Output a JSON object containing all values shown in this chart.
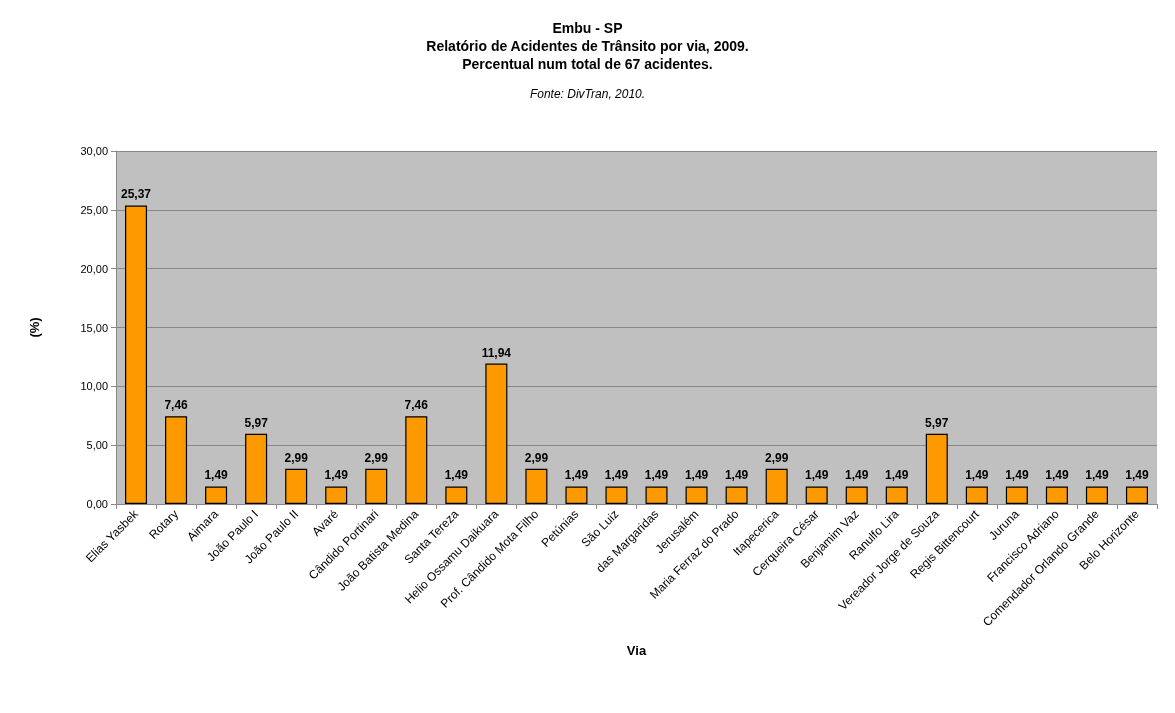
{
  "chart_data": {
    "type": "bar",
    "title": "Embu - SP",
    "subtitle": "Relatório de Acidentes de Trânsito por via, 2009.\nPercentual num total de 67 acidentes.",
    "annotations": [
      "Fonte: DivTran, 2010."
    ],
    "xlabel": "Via",
    "ylabel": "(%)",
    "categories": [
      "Elias Yasbek",
      "Rotary",
      "Aimara",
      "João Paulo I",
      "João Paulo II",
      "Avaré",
      "Cândido Portinari",
      "João Batista Medina",
      "Santa Tereza",
      "Helio Ossamu Daikuara",
      "Prof. Cândido Mota Filho",
      "Petúnias",
      "São Luiz",
      "das Margaridas",
      "Jerusalém",
      "Maria Ferraz do Prado",
      "Itapecerica",
      "Cerqueira César",
      "Benjamim Vaz",
      "Ranulfo Lira",
      "Vereador Jorge de Souza",
      "Regis Bittencourt",
      "Juruna",
      "Francisco Adriano",
      "Comendador Orlando Grande",
      "Belo Horizonte"
    ],
    "values": [
      25.37,
      7.46,
      1.49,
      5.97,
      2.99,
      1.49,
      2.99,
      7.46,
      1.49,
      11.94,
      2.99,
      1.49,
      1.49,
      1.49,
      1.49,
      1.49,
      2.99,
      1.49,
      1.49,
      1.49,
      5.97,
      1.49,
      1.49,
      1.49,
      1.49,
      1.49
    ],
    "value_labels": [
      "25,37",
      "7,46",
      "1,49",
      "5,97",
      "2,99",
      "1,49",
      "2,99",
      "7,46",
      "1,49",
      "11,94",
      "2,99",
      "1,49",
      "1,49",
      "1,49",
      "1,49",
      "1,49",
      "2,99",
      "1,49",
      "1,49",
      "1,49",
      "5,97",
      "1,49",
      "1,49",
      "1,49",
      "1,49",
      "1,49"
    ],
    "color": "#ff9900",
    "ylim": [
      0,
      30
    ],
    "yticks": [
      {
        "value": 0,
        "label": "0,00"
      },
      {
        "value": 5,
        "label": "5,00"
      },
      {
        "value": 10,
        "label": "10,00"
      },
      {
        "value": 15,
        "label": "15,00"
      },
      {
        "value": 20,
        "label": "20,00"
      },
      {
        "value": 25,
        "label": "25,00"
      },
      {
        "value": 30,
        "label": "30,00"
      }
    ],
    "grid": "y"
  }
}
